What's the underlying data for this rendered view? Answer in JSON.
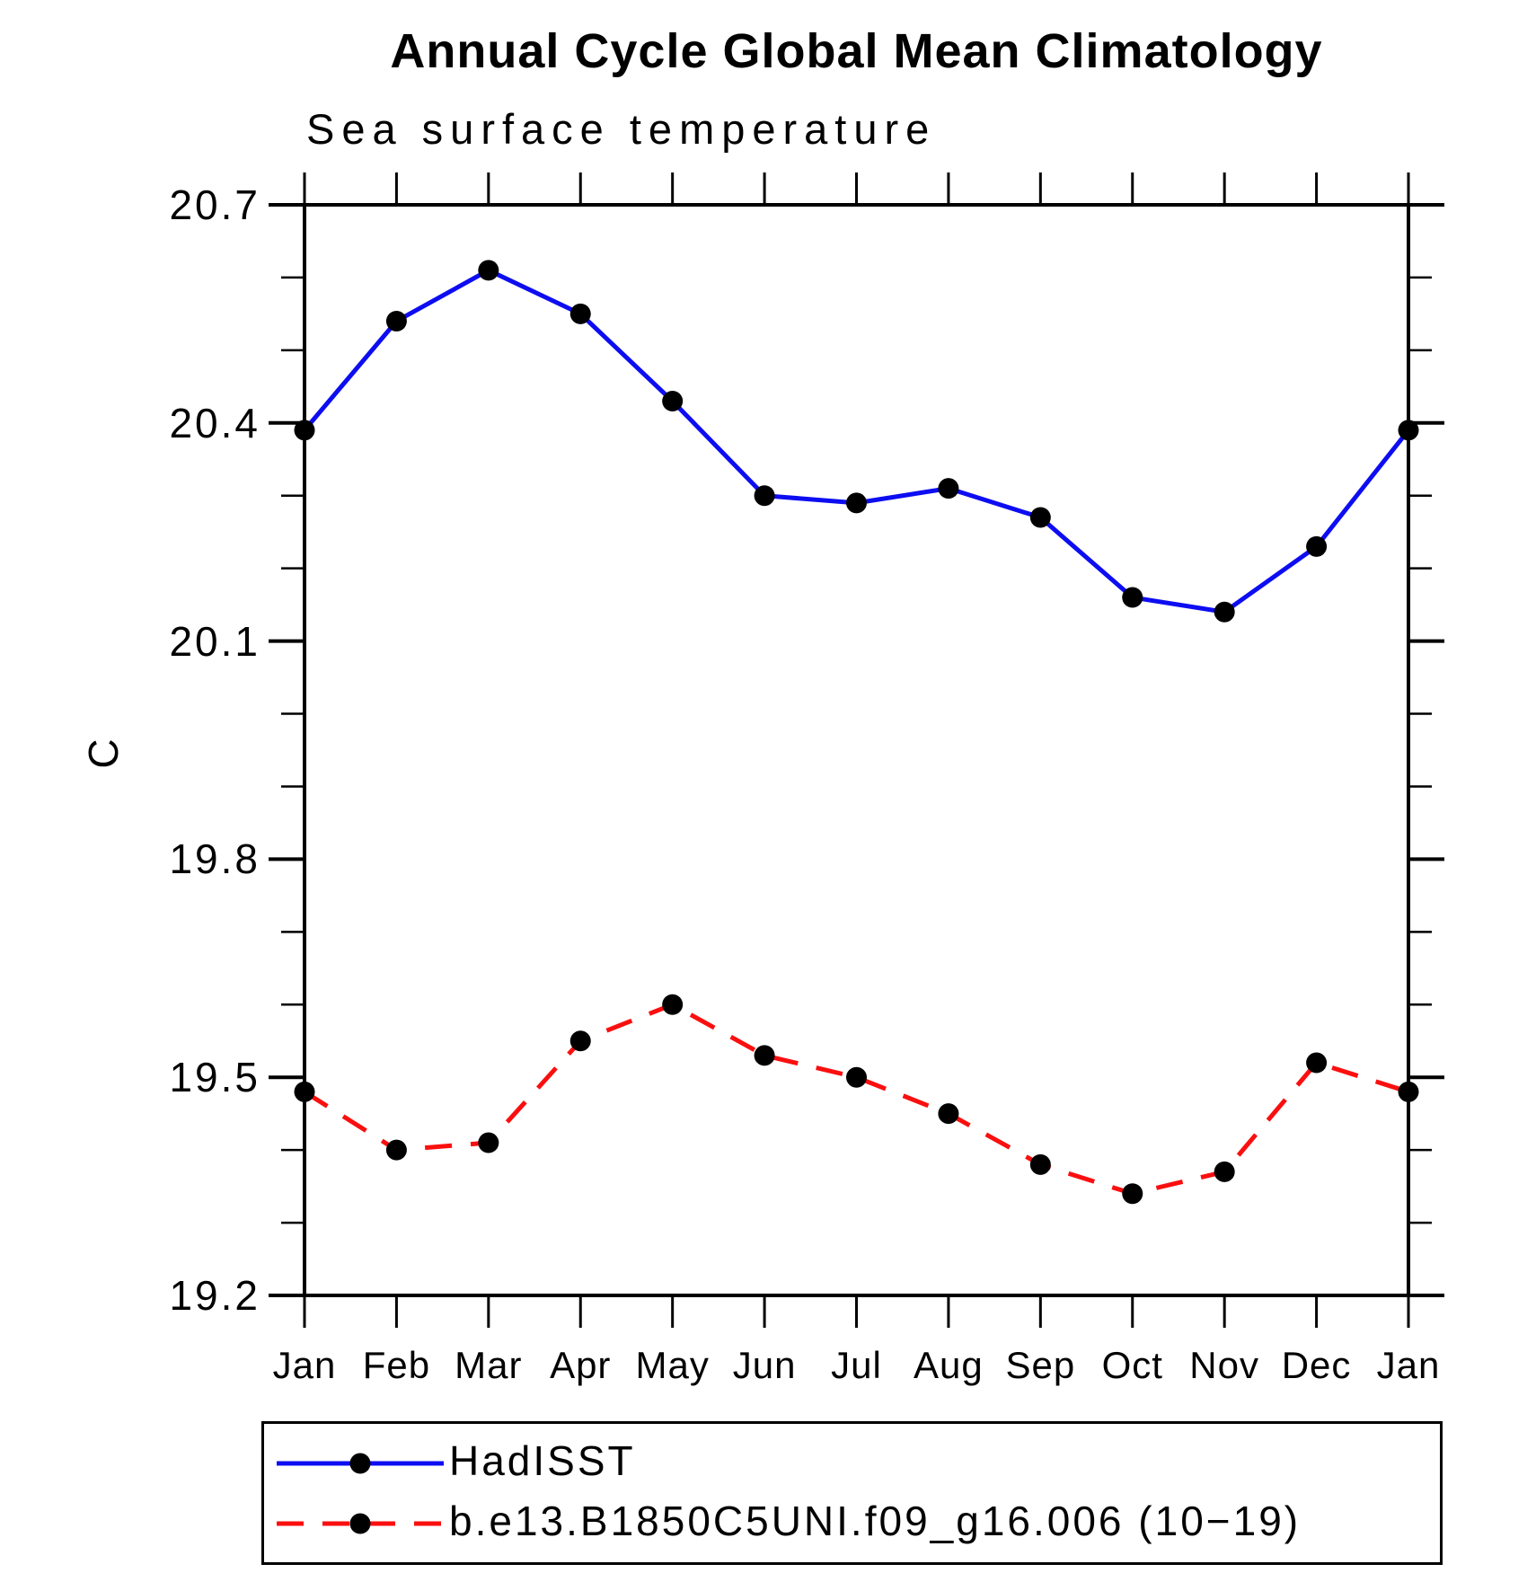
{
  "chart_data": {
    "type": "line",
    "title": "Annual Cycle Global Mean Climatology",
    "subtitle": "Sea surface temperature",
    "xlabel": "",
    "ylabel": "C",
    "categories": [
      "Jan",
      "Feb",
      "Mar",
      "Apr",
      "May",
      "Jun",
      "Jul",
      "Aug",
      "Sep",
      "Oct",
      "Nov",
      "Dec",
      "Jan"
    ],
    "series": [
      {
        "name": "HadISST",
        "style": "solid",
        "color": "#0d0df2",
        "values": [
          20.39,
          20.54,
          20.61,
          20.55,
          20.43,
          20.3,
          20.29,
          20.31,
          20.27,
          20.16,
          20.14,
          20.23,
          20.39
        ]
      },
      {
        "name": "b.e13.B1850C5UNI.f09_g16.006 (10−19)",
        "style": "dashed",
        "color": "#fa0f0f",
        "values": [
          19.48,
          19.4,
          19.41,
          19.55,
          19.6,
          19.53,
          19.5,
          19.45,
          19.38,
          19.34,
          19.37,
          19.52,
          19.48
        ]
      }
    ],
    "ylim": [
      19.2,
      20.7
    ],
    "ytick_labels": [
      "19.2",
      "19.5",
      "19.8",
      "20.1",
      "20.4",
      "20.7"
    ],
    "ytick_major_step": 0.3,
    "ytick_minor_step": 0.1,
    "marker": "circle",
    "marker_color": "#000000",
    "axis_color": "#000000",
    "grid": false,
    "legend_position": "bottom"
  }
}
